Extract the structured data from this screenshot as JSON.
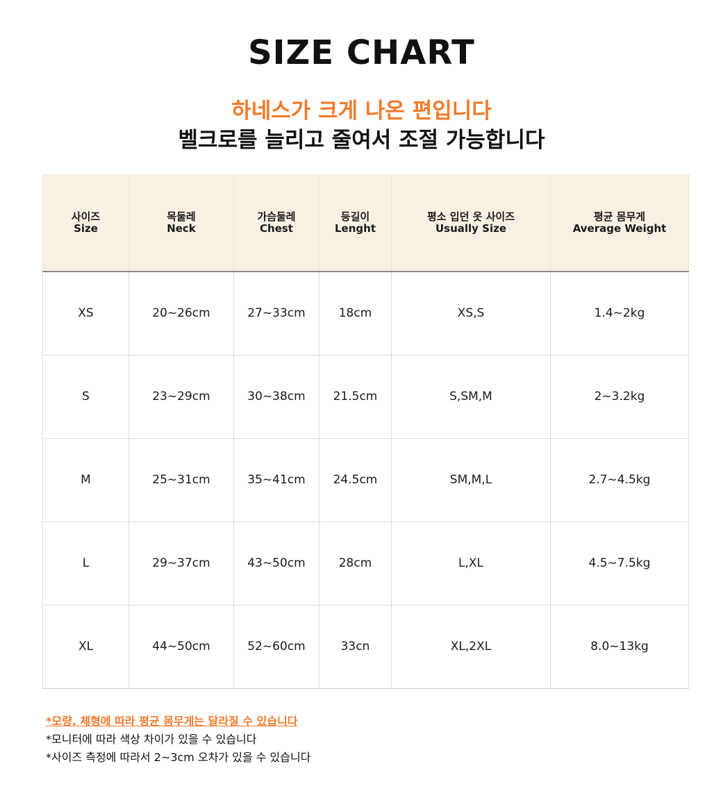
{
  "title": "SIZE CHART",
  "subtitle_highlight": "하네스가 크게 나온 편입니다",
  "subtitle_main": "벨크로를 늘리고 줄여서 조절 가능합니다",
  "colors": {
    "accent": "#f47a2a",
    "header_bg": "#f7f0e3",
    "border": "#dcdcdc"
  },
  "table": {
    "headers": [
      {
        "ko": "사이즈",
        "en": "Size"
      },
      {
        "ko": "목둘레",
        "en": "Neck"
      },
      {
        "ko": "가슴둘레",
        "en": "Chest"
      },
      {
        "ko": "등길이",
        "en": "Lenght"
      },
      {
        "ko": "평소 입던 옷 사이즈",
        "en": "Usually Size"
      },
      {
        "ko": "평균 몸무게",
        "en": "Average Weight"
      }
    ],
    "rows": [
      [
        "XS",
        "20~26cm",
        "27~33cm",
        "18cm",
        "XS,S",
        "1.4~2kg"
      ],
      [
        "S",
        "23~29cm",
        "30~38cm",
        "21.5cm",
        "S,SM,M",
        "2~3.2kg"
      ],
      [
        "M",
        "25~31cm",
        "35~41cm",
        "24.5cm",
        "SM,M,L",
        "2.7~4.5kg"
      ],
      [
        "L",
        "29~37cm",
        "43~50cm",
        "28cm",
        "L,XL",
        "4.5~7.5kg"
      ],
      [
        "XL",
        "44~50cm",
        "52~60cm",
        "33cn",
        "XL,2XL",
        "8.0~13kg"
      ]
    ]
  },
  "notes": [
    "*모량, 체형에 따라 평균 몸무게는 달라질 수 있습니다",
    "*모니터에 따라 색상 차이가 있을 수 있습니다",
    "*사이즈  측정에  따라서 2~3cm 오차가 있을 수 있습니다"
  ]
}
